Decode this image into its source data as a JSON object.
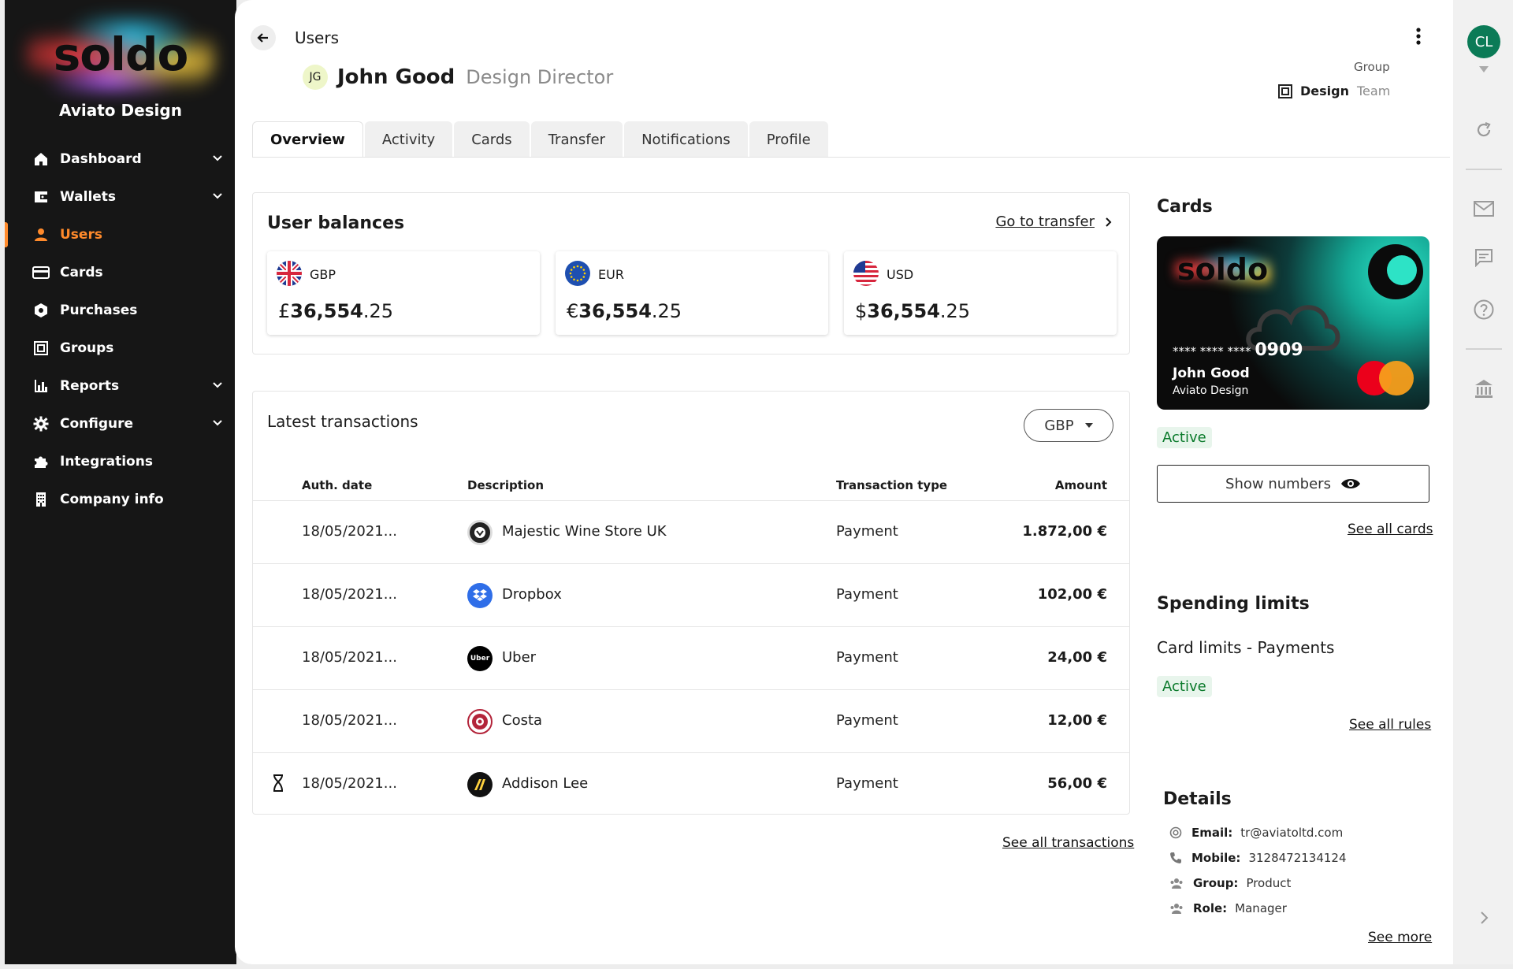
{
  "sidebar": {
    "logo": "soldo",
    "company": "Aviato Design",
    "items": [
      {
        "label": "Dashboard",
        "icon": "home-icon",
        "chevron": true
      },
      {
        "label": "Wallets",
        "icon": "wallet-icon",
        "chevron": true
      },
      {
        "label": "Users",
        "icon": "user-icon",
        "active": true
      },
      {
        "label": "Cards",
        "icon": "card-icon"
      },
      {
        "label": "Purchases",
        "icon": "purchases-icon"
      },
      {
        "label": "Groups",
        "icon": "groups-icon"
      },
      {
        "label": "Reports",
        "icon": "reports-icon",
        "chevron": true
      },
      {
        "label": "Configure",
        "icon": "gear-icon",
        "chevron": true
      },
      {
        "label": "Integrations",
        "icon": "puzzle-icon"
      },
      {
        "label": "Company info",
        "icon": "building-icon"
      }
    ]
  },
  "header": {
    "breadcrumb": "Users",
    "initials": "JG",
    "user_name": "John Good",
    "user_role": "Design Director",
    "group_label": "Group",
    "group_name": "Design",
    "group_type": "Team"
  },
  "tabs": [
    "Overview",
    "Activity",
    "Cards",
    "Transfer",
    "Notifications",
    "Profile"
  ],
  "balances": {
    "title": "User balances",
    "go_transfer": "Go to transfer",
    "items": [
      {
        "currency": "GBP",
        "symbol": "£",
        "whole": "36,554",
        "decimals": ".25"
      },
      {
        "currency": "EUR",
        "symbol": "€",
        "whole": "36,554",
        "decimals": ".25"
      },
      {
        "currency": "USD",
        "symbol": "$",
        "whole": "36,554",
        "decimals": ".25"
      }
    ]
  },
  "transactions": {
    "title": "Latest transactions",
    "currency_filter": "GBP",
    "columns": [
      "Auth. date",
      "Description",
      "Transaction type",
      "Amount"
    ],
    "rows": [
      {
        "date": "18/05/2021...",
        "desc": "Majestic Wine Store UK",
        "type": "Payment",
        "amount": "1.872,00 €",
        "pending": false
      },
      {
        "date": "18/05/2021...",
        "desc": "Dropbox",
        "type": "Payment",
        "amount": "102,00 €",
        "pending": false
      },
      {
        "date": "18/05/2021...",
        "desc": "Uber",
        "type": "Payment",
        "amount": "24,00 €",
        "pending": false
      },
      {
        "date": "18/05/2021...",
        "desc": "Costa",
        "type": "Payment",
        "amount": "12,00 €",
        "pending": false
      },
      {
        "date": "18/05/2021...",
        "desc": "Addison Lee",
        "type": "Payment",
        "amount": "56,00 €",
        "pending": true
      }
    ],
    "see_all": "See all transactions"
  },
  "cards": {
    "title": "Cards",
    "card_logo": "soldo",
    "masked": "**** **** ****",
    "last4": "0909",
    "holder": "John Good",
    "company": "Aviato Design",
    "status": "Active",
    "show_numbers": "Show numbers",
    "see_all": "See all cards"
  },
  "limits": {
    "title": "Spending limits",
    "subtitle": "Card limits - Payments",
    "status": "Active",
    "see_all": "See all rules"
  },
  "details": {
    "title": "Details",
    "rows": [
      {
        "key": "Email:",
        "value": "tr@aviatoltd.com",
        "icon": "at-icon"
      },
      {
        "key": "Mobile:",
        "value": "3128472134124",
        "icon": "phone-icon"
      },
      {
        "key": "Group:",
        "value": "Product",
        "icon": "people-icon"
      },
      {
        "key": "Role:",
        "value": "Manager",
        "icon": "people-icon"
      }
    ],
    "see_more": "See more"
  },
  "rail": {
    "avatar": "CL"
  },
  "colors": {
    "accent": "#ff8a2b",
    "active_green": "#0a7a2b",
    "sidebar": "#161616"
  }
}
